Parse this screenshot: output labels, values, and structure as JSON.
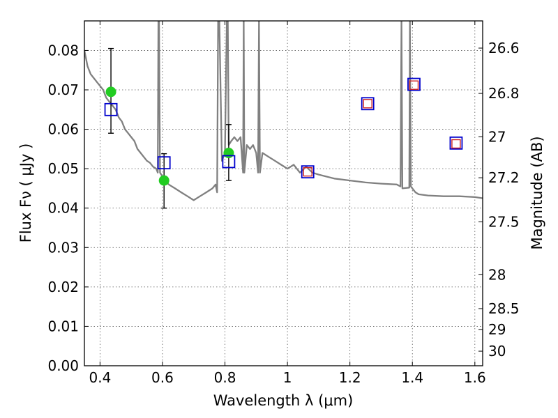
{
  "chart_data": {
    "type": "scatter",
    "title": "",
    "xlabel": "Wavelength  λ (μm)",
    "ylabel": "Flux  Fν  ( μJy )",
    "ylabel_right": "Magnitude (AB)",
    "xlim": [
      0.35,
      1.625
    ],
    "ylim": [
      0.0,
      0.0875
    ],
    "grid": true,
    "x_ticks": [
      {
        "value": 0.4,
        "label": "0.4"
      },
      {
        "value": 0.6,
        "label": "0.6"
      },
      {
        "value": 0.8,
        "label": "0.8"
      },
      {
        "value": 1.0,
        "label": "1"
      },
      {
        "value": 1.2,
        "label": "1.2"
      },
      {
        "value": 1.4,
        "label": "1.4"
      },
      {
        "value": 1.6,
        "label": "1.6"
      }
    ],
    "y_ticks": [
      {
        "value": 0.0,
        "label": "0.00"
      },
      {
        "value": 0.01,
        "label": "0.01"
      },
      {
        "value": 0.02,
        "label": "0.02"
      },
      {
        "value": 0.03,
        "label": "0.03"
      },
      {
        "value": 0.04,
        "label": "0.04"
      },
      {
        "value": 0.05,
        "label": "0.05"
      },
      {
        "value": 0.06,
        "label": "0.06"
      },
      {
        "value": 0.07,
        "label": "0.07"
      },
      {
        "value": 0.08,
        "label": "0.08"
      }
    ],
    "right_ticks": [
      {
        "label": "26.6",
        "flux": 0.0806
      },
      {
        "label": "26.8",
        "flux": 0.0691
      },
      {
        "label": "27",
        "flux": 0.0581
      },
      {
        "label": "27.2",
        "flux": 0.0477
      },
      {
        "label": "27.5",
        "flux": 0.0365
      },
      {
        "label": "28",
        "flux": 0.0231
      },
      {
        "label": "28.5",
        "flux": 0.0145
      },
      {
        "label": "29",
        "flux": 0.0092
      },
      {
        "label": "30",
        "flux": 0.0037
      }
    ],
    "series": [
      {
        "kind": "line",
        "color": "#808080",
        "x": [
          0.35,
          0.36,
          0.37,
          0.38,
          0.39,
          0.4,
          0.41,
          0.42,
          0.43,
          0.44,
          0.45,
          0.46,
          0.47,
          0.48,
          0.49,
          0.5,
          0.51,
          0.52,
          0.53,
          0.54,
          0.55,
          0.56,
          0.57,
          0.58,
          0.585,
          0.587,
          0.589,
          0.592,
          0.6,
          0.62,
          0.64,
          0.66,
          0.68,
          0.7,
          0.72,
          0.74,
          0.76,
          0.77,
          0.775,
          0.778,
          0.782,
          0.79,
          0.8,
          0.806,
          0.809,
          0.812,
          0.82,
          0.83,
          0.84,
          0.85,
          0.858,
          0.86,
          0.862,
          0.87,
          0.88,
          0.89,
          0.9,
          0.906,
          0.909,
          0.912,
          0.92,
          0.94,
          0.96,
          0.98,
          1.0,
          1.02,
          1.04,
          1.06,
          1.08,
          1.1,
          1.15,
          1.2,
          1.25,
          1.3,
          1.35,
          1.362,
          1.365,
          1.368,
          1.39,
          1.392,
          1.395,
          1.4,
          1.41,
          1.42,
          1.45,
          1.5,
          1.55,
          1.6,
          1.625
        ],
        "y": [
          0.08,
          0.076,
          0.074,
          0.073,
          0.072,
          0.071,
          0.07,
          0.068,
          0.067,
          0.066,
          0.065,
          0.063,
          0.062,
          0.06,
          0.059,
          0.058,
          0.057,
          0.055,
          0.054,
          0.053,
          0.052,
          0.0515,
          0.0505,
          0.05,
          0.049,
          0.0875,
          0.0875,
          0.049,
          0.048,
          0.046,
          0.045,
          0.044,
          0.043,
          0.042,
          0.043,
          0.044,
          0.045,
          0.046,
          0.044,
          0.0875,
          0.0875,
          0.052,
          0.054,
          0.0875,
          0.0875,
          0.056,
          0.057,
          0.058,
          0.057,
          0.058,
          0.049,
          0.0875,
          0.049,
          0.056,
          0.055,
          0.056,
          0.054,
          0.049,
          0.0875,
          0.049,
          0.054,
          0.053,
          0.052,
          0.051,
          0.05,
          0.051,
          0.049,
          0.0505,
          0.049,
          0.0485,
          0.0475,
          0.047,
          0.0465,
          0.0462,
          0.046,
          0.0455,
          0.0875,
          0.045,
          0.0452,
          0.0875,
          0.0455,
          0.045,
          0.044,
          0.0435,
          0.0432,
          0.043,
          0.043,
          0.0428,
          0.0425
        ]
      },
      {
        "kind": "points",
        "marker": "circle",
        "color": "#22cc22",
        "x": [
          0.435,
          0.605,
          0.812
        ],
        "y": [
          0.0695,
          0.047,
          0.054
        ],
        "yerr_low": [
          0.059,
          0.04,
          0.047
        ],
        "yerr_high": [
          0.0805,
          0.0538,
          0.0612
        ]
      },
      {
        "kind": "points",
        "marker": "square-open",
        "color": "#0000cc",
        "x": [
          0.435,
          0.605,
          0.812,
          1.065,
          1.257,
          1.405,
          1.54
        ],
        "y": [
          0.065,
          0.0515,
          0.0518,
          0.0492,
          0.0665,
          0.0714,
          0.0565
        ]
      },
      {
        "kind": "points",
        "marker": "square-open-small",
        "color": "#cc2222",
        "x": [
          1.065,
          1.257,
          1.405,
          1.54
        ],
        "y": [
          0.0492,
          0.0665,
          0.0712,
          0.0563
        ]
      }
    ]
  }
}
